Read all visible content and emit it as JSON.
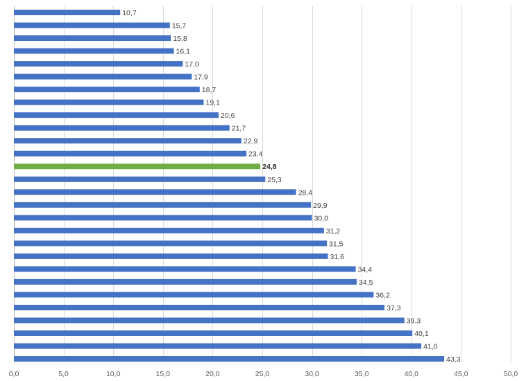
{
  "chart_data": {
    "type": "bar",
    "orientation": "horizontal",
    "values": [
      10.7,
      15.7,
      15.8,
      16.1,
      17.0,
      17.9,
      18.7,
      19.1,
      20.6,
      21.7,
      22.9,
      23.4,
      24.8,
      25.3,
      28.4,
      29.9,
      30.0,
      31.2,
      31.5,
      31.6,
      34.4,
      34.5,
      36.2,
      37.3,
      39.3,
      40.1,
      41.0,
      43.3
    ],
    "data_labels": [
      "10,7",
      "15,7",
      "15,8",
      "16,1",
      "17,0",
      "17,9",
      "18,7",
      "19,1",
      "20,6",
      "21,7",
      "22,9",
      "23,4",
      "24,8",
      "25,3",
      "28,4",
      "29,9",
      "30,0",
      "31,2",
      "31,5",
      "31,6",
      "34,4",
      "34,5",
      "36,2",
      "37,3",
      "39,3",
      "40,1",
      "41,0",
      "43,3"
    ],
    "highlight_index": 12,
    "xlim": [
      0,
      50
    ],
    "x_ticks": [
      0,
      5,
      10,
      15,
      20,
      25,
      30,
      35,
      40,
      45,
      50
    ],
    "x_tick_labels": [
      "0,0",
      "5,0",
      "10,0",
      "15,0",
      "20,0",
      "25,0",
      "30,0",
      "35,0",
      "40,0",
      "45,0",
      "50,0"
    ],
    "colors": {
      "bar": "#4472c4",
      "highlight": "#70ad47",
      "grid": "#d9d9d9"
    },
    "grid": true,
    "legend": "none",
    "title": "",
    "xlabel": "",
    "ylabel": ""
  }
}
